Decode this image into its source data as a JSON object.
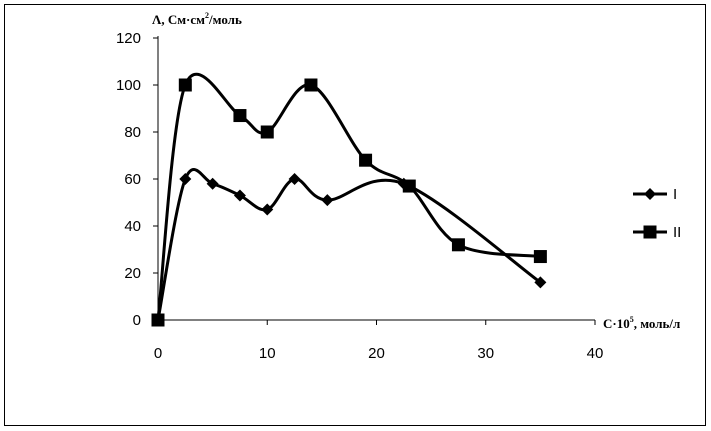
{
  "chart_data": {
    "type": "line",
    "ylabel_main": "Λ, См·см",
    "ylabel_sup": "2",
    "ylabel_tail": "/моль",
    "xlabel_main": "C·10",
    "xlabel_sup": "5",
    "xlabel_tail": ", моль/л",
    "xlim": [
      0,
      40
    ],
    "ylim": [
      0,
      120
    ],
    "xticks": [
      0,
      10,
      20,
      30,
      40
    ],
    "yticks": [
      0,
      20,
      40,
      60,
      80,
      100,
      120
    ],
    "grid": false,
    "legend_position": "right",
    "series": [
      {
        "name": "I",
        "marker": "diamond",
        "color": "#000000",
        "x": [
          0,
          2.5,
          5,
          7.5,
          10,
          12.5,
          15.5,
          22.5,
          35
        ],
        "y": [
          0,
          60,
          58,
          53,
          47,
          60,
          51,
          58,
          16
        ]
      },
      {
        "name": "II",
        "marker": "square",
        "color": "#000000",
        "x": [
          0,
          2.5,
          7.5,
          10,
          14,
          19,
          23,
          27.5,
          35
        ],
        "y": [
          0,
          100,
          87,
          80,
          100,
          68,
          57,
          32,
          27
        ]
      }
    ]
  }
}
